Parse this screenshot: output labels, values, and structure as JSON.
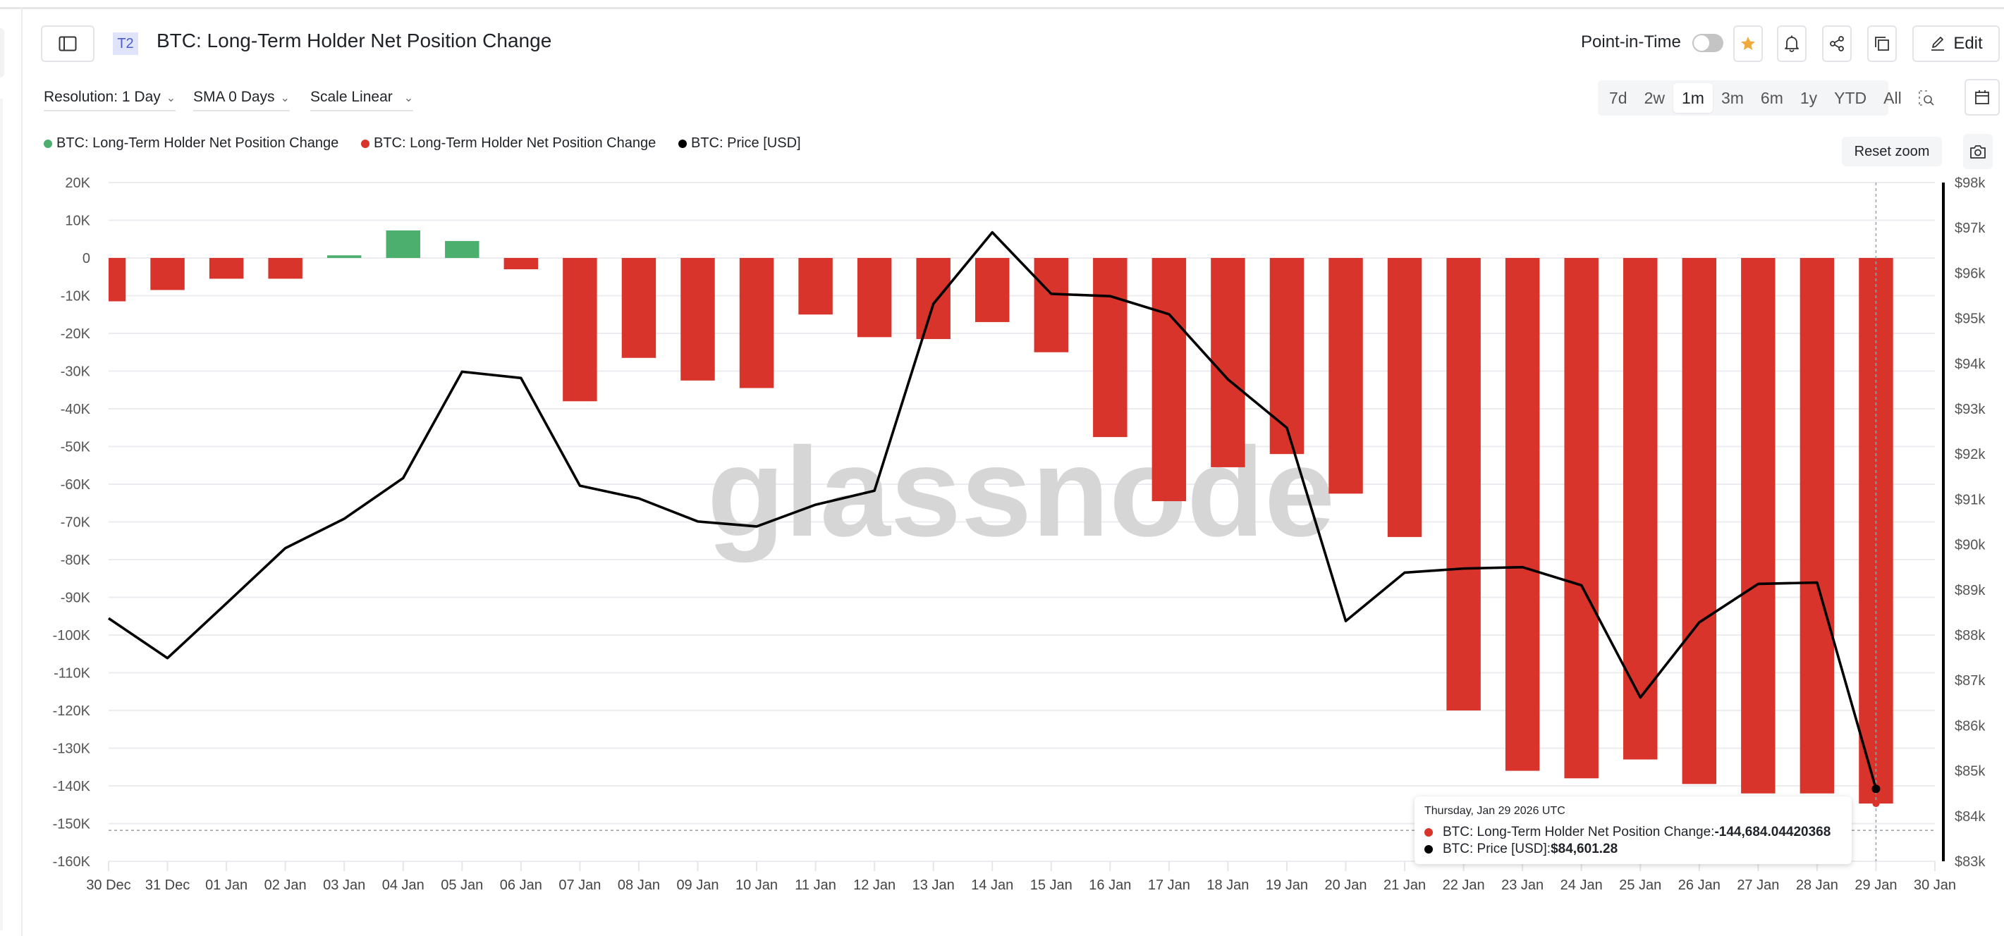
{
  "header": {
    "tier_badge": "T2",
    "title": "BTC: Long-Term Holder Net Position Change",
    "point_in_time_label": "Point-in-Time",
    "point_in_time_enabled": false,
    "edit_label": "Edit"
  },
  "controls": {
    "resolution": "Resolution: 1 Day",
    "sma": "SMA 0 Days",
    "scale": "Scale Linear",
    "ranges": [
      "7d",
      "2w",
      "1m",
      "3m",
      "6m",
      "1y",
      "YTD",
      "All"
    ],
    "active_range": "1m",
    "reset_zoom": "Reset zoom"
  },
  "legend": [
    {
      "label": "BTC: Long-Term Holder Net Position Change",
      "color": "#4caf6e"
    },
    {
      "label": "BTC: Long-Term Holder Net Position Change",
      "color": "#d9342b"
    },
    {
      "label": "BTC: Price [USD]",
      "color": "#000000"
    }
  ],
  "watermark": "glassnode",
  "tooltip": {
    "date": "Thursday, Jan 29 2026 UTC",
    "rows": [
      {
        "label": "BTC: Long-Term Holder Net Position Change: ",
        "value": "-144,684.04420368",
        "color": "#d9342b"
      },
      {
        "label": "BTC: Price [USD]: ",
        "value": "$84,601.28",
        "color": "#000000"
      }
    ]
  },
  "colors": {
    "positive": "#4caf6e",
    "negative": "#d9342b",
    "price": "#000000",
    "star": "#f0a93b"
  },
  "chart_data": {
    "type": "bar",
    "title": "BTC: Long-Term Holder Net Position Change",
    "categories": [
      "30 Dec",
      "31 Dec",
      "01 Jan",
      "02 Jan",
      "03 Jan",
      "04 Jan",
      "05 Jan",
      "06 Jan",
      "07 Jan",
      "08 Jan",
      "09 Jan",
      "10 Jan",
      "11 Jan",
      "12 Jan",
      "13 Jan",
      "14 Jan",
      "15 Jan",
      "16 Jan",
      "17 Jan",
      "18 Jan",
      "19 Jan",
      "20 Jan",
      "21 Jan",
      "22 Jan",
      "23 Jan",
      "24 Jan",
      "25 Jan",
      "26 Jan",
      "27 Jan",
      "28 Jan",
      "29 Jan"
    ],
    "x_tick_labels": [
      "30 Dec",
      "31 Dec",
      "01 Jan",
      "02 Jan",
      "03 Jan",
      "04 Jan",
      "05 Jan",
      "06 Jan",
      "07 Jan",
      "08 Jan",
      "09 Jan",
      "10 Jan",
      "11 Jan",
      "12 Jan",
      "13 Jan",
      "14 Jan",
      "15 Jan",
      "16 Jan",
      "17 Jan",
      "18 Jan",
      "19 Jan",
      "20 Jan",
      "21 Jan",
      "22 Jan",
      "23 Jan",
      "24 Jan",
      "25 Jan",
      "26 Jan",
      "27 Jan",
      "28 Jan",
      "29 Jan",
      "30 Jan"
    ],
    "series": [
      {
        "name": "BTC: Long-Term Holder Net Position Change",
        "type": "bar",
        "axis": "left",
        "values": [
          -11500,
          -8500,
          -5500,
          -5500,
          700,
          7300,
          4500,
          -3000,
          -38000,
          -26500,
          -32500,
          -34500,
          -15000,
          -21000,
          -21500,
          -17000,
          -25000,
          -47500,
          -64500,
          -55500,
          -52000,
          -62500,
          -74000,
          -120000,
          -136000,
          -138000,
          -133000,
          -139500,
          -142000,
          -142000,
          -144684.04
        ]
      },
      {
        "name": "BTC: Price [USD]",
        "type": "line",
        "axis": "right",
        "values": [
          88370,
          87490,
          88700,
          89920,
          90570,
          91470,
          93820,
          93680,
          91300,
          91020,
          90510,
          90400,
          90880,
          91190,
          95320,
          96900,
          95540,
          95490,
          95090,
          93650,
          92580,
          88310,
          89380,
          89470,
          89500,
          89100,
          86620,
          88280,
          89130,
          89160,
          84601.28
        ]
      }
    ],
    "xlabel": "",
    "ylabel": "",
    "ylim": [
      -160000,
      20000
    ],
    "y_ticks": [
      "20K",
      "10K",
      "0",
      "-10K",
      "-20K",
      "-30K",
      "-40K",
      "-50K",
      "-60K",
      "-70K",
      "-80K",
      "-90K",
      "-100K",
      "-110K",
      "-120K",
      "-130K",
      "-140K",
      "-150K",
      "-160K"
    ],
    "y2lim": [
      83000,
      98000
    ],
    "y2_ticks": [
      "$98k",
      "$97k",
      "$96k",
      "$95k",
      "$94k",
      "$93k",
      "$92k",
      "$91k",
      "$90k",
      "$89k",
      "$88k",
      "$87k",
      "$86k",
      "$85k",
      "$84k",
      "$83k"
    ],
    "grid": true,
    "legend_position": "top-left",
    "crosshair_date": "29 Jan"
  }
}
